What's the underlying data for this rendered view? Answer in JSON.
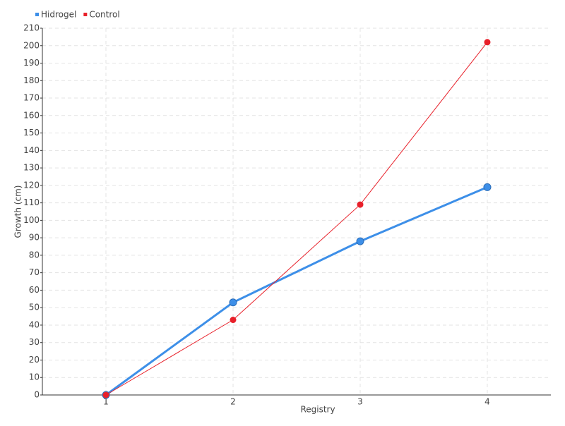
{
  "chart_data": {
    "type": "line",
    "categories": [
      "1",
      "2",
      "3",
      "4"
    ],
    "series": [
      {
        "name": "Hidrogel",
        "color": "#3d8fe8",
        "values": [
          0,
          53,
          88,
          119
        ]
      },
      {
        "name": "Control",
        "color": "#e8202a",
        "values": [
          0,
          43,
          109,
          202
        ]
      }
    ],
    "x_label": "Registry",
    "y_label": "Growth (cm)",
    "ylim": [
      0,
      210
    ],
    "yticks": [
      0,
      10,
      20,
      30,
      40,
      50,
      60,
      70,
      80,
      90,
      100,
      110,
      120,
      130,
      140,
      150,
      160,
      170,
      180,
      190,
      200,
      210
    ],
    "grid": true,
    "legend": "top-left"
  }
}
